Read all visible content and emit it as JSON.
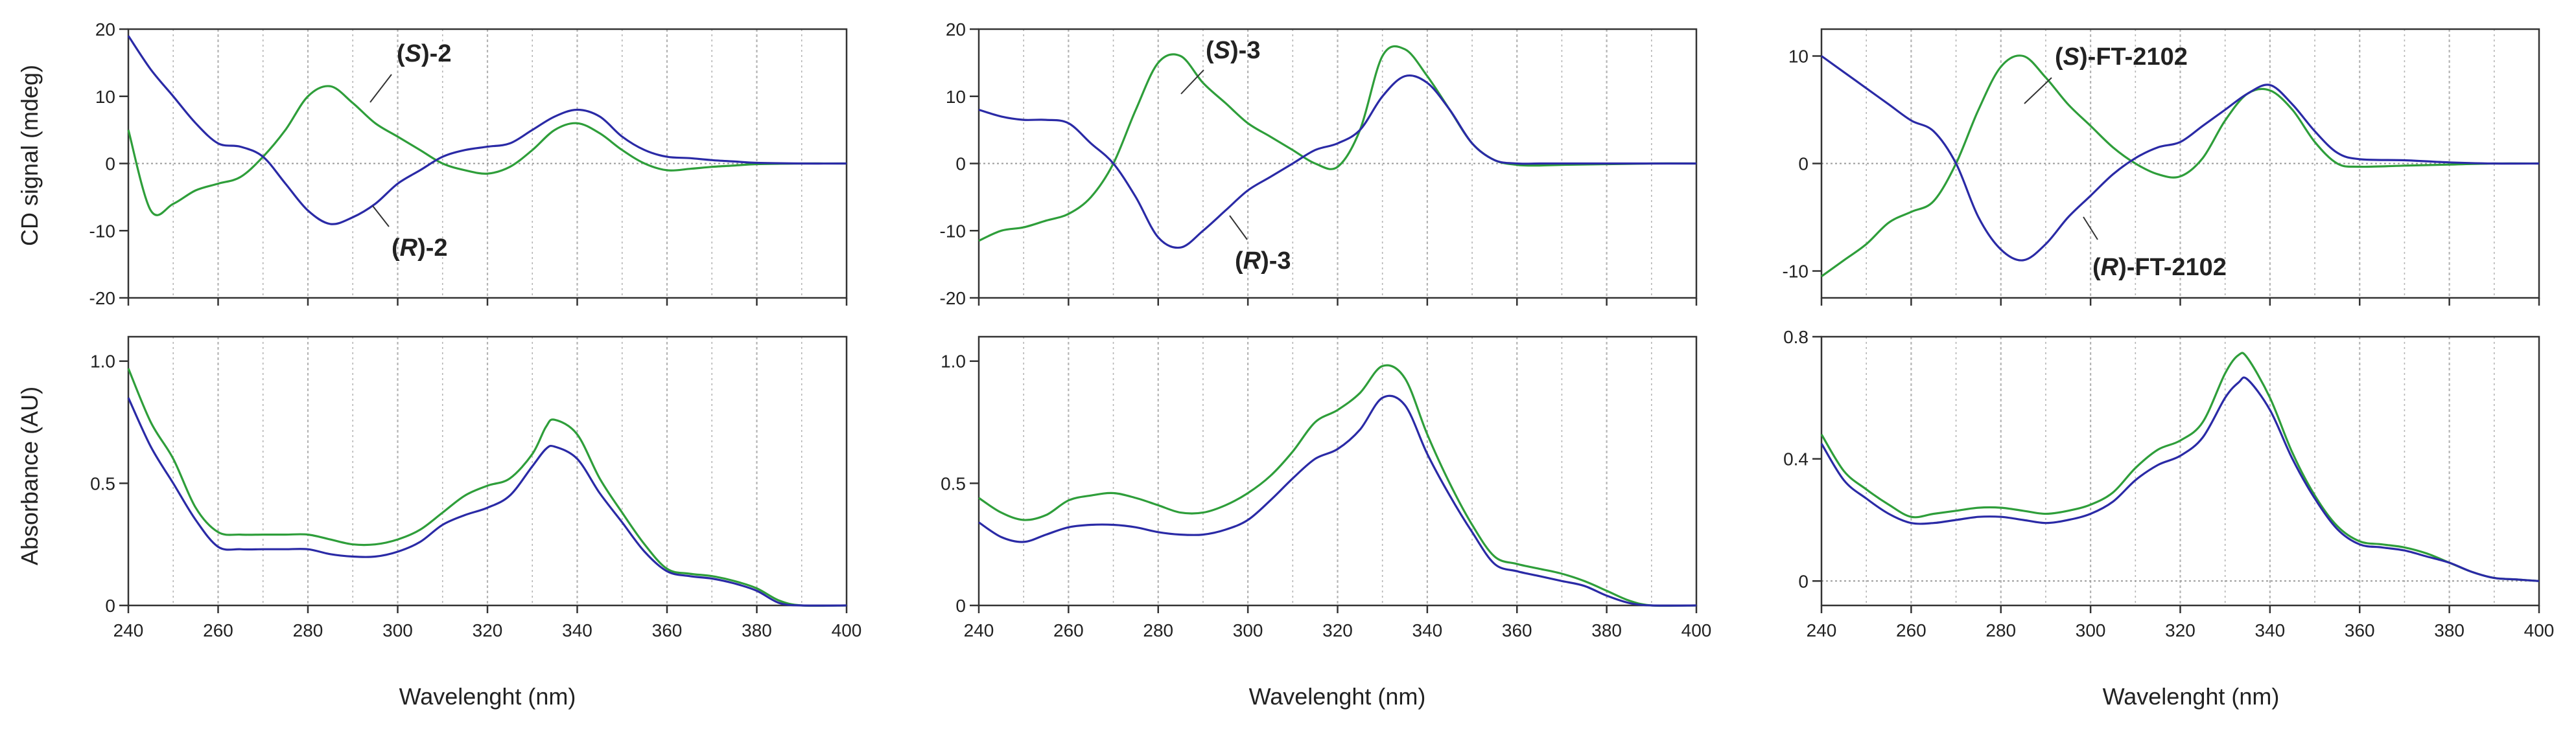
{
  "figure": {
    "colors": {
      "S": "#2e9e3a",
      "R": "#2a2aa6",
      "axis": "#333333",
      "grid": "#b5b5b5",
      "zero": "#9a9a9a"
    },
    "y_label_cd": "CD signal (mdeg)",
    "y_label_abs": "Absorbance (AU)",
    "x_label": "Wavelenght (nm)"
  },
  "chart_data": [
    {
      "type": "line",
      "panel": "cd",
      "compound": "2",
      "title": "",
      "xlabel": "",
      "ylabel": "CD signal (mdeg)",
      "xlim": [
        240,
        400
      ],
      "ylim": [
        -20,
        20
      ],
      "xticks": [
        240,
        260,
        280,
        300,
        320,
        340,
        360,
        380,
        400
      ],
      "yticks": [
        -20,
        -10,
        0,
        10,
        20
      ],
      "ytick_labels": [
        "-20",
        "-10",
        "0",
        "10",
        "20"
      ],
      "x": [
        240,
        245,
        250,
        255,
        260,
        265,
        270,
        275,
        280,
        285,
        290,
        295,
        300,
        305,
        310,
        315,
        320,
        325,
        330,
        335,
        340,
        345,
        350,
        355,
        360,
        365,
        370,
        375,
        380,
        390,
        400
      ],
      "series": [
        {
          "name": "(S)-2",
          "color": "#2e9e3a",
          "values": [
            5,
            -7,
            -6,
            -4,
            -3,
            -2,
            1,
            5,
            10,
            11.5,
            9,
            6,
            4,
            2,
            0,
            -1,
            -1.5,
            -0.5,
            2,
            5,
            6,
            4.5,
            2,
            0,
            -1,
            -0.8,
            -0.5,
            -0.3,
            -0.1,
            0,
            0
          ]
        },
        {
          "name": "(R)-2",
          "color": "#2a2aa6",
          "values": [
            19,
            14,
            10,
            6,
            3,
            2.5,
            1,
            -3,
            -7,
            -9,
            -8,
            -6,
            -3,
            -1,
            1,
            2,
            2.5,
            3,
            5,
            7,
            8,
            7,
            4,
            2,
            1,
            0.8,
            0.5,
            0.3,
            0.1,
            0,
            0
          ]
        }
      ],
      "annotations": [
        {
          "text_parts": [
            "(",
            "S",
            ")-2"
          ],
          "series": "(S)-2"
        },
        {
          "text_parts": [
            "(",
            "R",
            ")-2"
          ],
          "series": "(R)-2"
        }
      ]
    },
    {
      "type": "line",
      "panel": "abs",
      "compound": "2",
      "title": "",
      "xlabel": "Wavelenght (nm)",
      "ylabel": "Absorbance (AU)",
      "xlim": [
        240,
        400
      ],
      "ylim": [
        0,
        1.1
      ],
      "xticks": [
        240,
        260,
        280,
        300,
        320,
        340,
        360,
        380,
        400
      ],
      "yticks": [
        0,
        0.5,
        1.0
      ],
      "ytick_labels": [
        "0",
        "0.5",
        "1.0"
      ],
      "xtick_labels": [
        "240",
        "260",
        "280",
        "300",
        "320",
        "340",
        "360",
        "380",
        "400"
      ],
      "x": [
        240,
        245,
        250,
        255,
        260,
        265,
        270,
        275,
        280,
        285,
        290,
        295,
        300,
        305,
        310,
        315,
        320,
        325,
        330,
        333,
        335,
        340,
        345,
        350,
        355,
        360,
        365,
        370,
        375,
        380,
        385,
        390,
        400
      ],
      "series": [
        {
          "name": "(S)-2",
          "color": "#2e9e3a",
          "values": [
            0.97,
            0.75,
            0.6,
            0.4,
            0.3,
            0.29,
            0.29,
            0.29,
            0.29,
            0.27,
            0.25,
            0.25,
            0.27,
            0.31,
            0.38,
            0.45,
            0.49,
            0.52,
            0.62,
            0.73,
            0.76,
            0.7,
            0.52,
            0.38,
            0.25,
            0.15,
            0.13,
            0.12,
            0.1,
            0.07,
            0.02,
            0,
            0
          ]
        },
        {
          "name": "(R)-2",
          "color": "#2a2aa6",
          "values": [
            0.85,
            0.65,
            0.5,
            0.35,
            0.24,
            0.23,
            0.23,
            0.23,
            0.23,
            0.21,
            0.2,
            0.2,
            0.22,
            0.26,
            0.33,
            0.37,
            0.4,
            0.45,
            0.57,
            0.64,
            0.65,
            0.6,
            0.46,
            0.34,
            0.22,
            0.14,
            0.12,
            0.11,
            0.09,
            0.06,
            0.01,
            0,
            0
          ]
        }
      ]
    },
    {
      "type": "line",
      "panel": "cd",
      "compound": "3",
      "title": "",
      "xlabel": "",
      "ylabel": "",
      "xlim": [
        240,
        400
      ],
      "ylim": [
        -20,
        20
      ],
      "xticks": [
        240,
        260,
        280,
        300,
        320,
        340,
        360,
        380,
        400
      ],
      "yticks": [
        -20,
        -10,
        0,
        10,
        20
      ],
      "ytick_labels": [
        "-20",
        "-10",
        "0",
        "10",
        "20"
      ],
      "x": [
        240,
        245,
        250,
        255,
        260,
        265,
        270,
        275,
        280,
        285,
        290,
        295,
        300,
        305,
        310,
        315,
        320,
        325,
        330,
        335,
        340,
        345,
        350,
        355,
        360,
        365,
        370,
        380,
        390,
        400
      ],
      "series": [
        {
          "name": "(S)-3",
          "color": "#2e9e3a",
          "values": [
            -11.5,
            -10,
            -9.5,
            -8.5,
            -7.5,
            -5,
            0,
            8,
            15,
            16,
            12,
            9,
            6,
            4,
            2,
            0,
            -0.5,
            5,
            16,
            17,
            13,
            8,
            3,
            0.5,
            -0.2,
            -0.3,
            -0.2,
            -0.1,
            0,
            0
          ]
        },
        {
          "name": "(R)-3",
          "color": "#2a2aa6",
          "values": [
            8,
            7,
            6.5,
            6.5,
            6,
            3,
            0,
            -5,
            -11,
            -12.5,
            -10,
            -7,
            -4,
            -2,
            0,
            2,
            3,
            5,
            10,
            13,
            12,
            8,
            3,
            0.5,
            0,
            0,
            0,
            0,
            0,
            0
          ]
        }
      ],
      "annotations": [
        {
          "text_parts": [
            "(",
            "S",
            ")-3"
          ],
          "series": "(S)-3"
        },
        {
          "text_parts": [
            "(",
            "R",
            ")-3"
          ],
          "series": "(R)-3"
        }
      ]
    },
    {
      "type": "line",
      "panel": "abs",
      "compound": "3",
      "title": "",
      "xlabel": "Wavelenght (nm)",
      "ylabel": "",
      "xlim": [
        240,
        400
      ],
      "ylim": [
        0,
        1.1
      ],
      "xticks": [
        240,
        260,
        280,
        300,
        320,
        340,
        360,
        380,
        400
      ],
      "yticks": [
        0,
        0.5,
        1.0
      ],
      "ytick_labels": [
        "0",
        "0.5",
        "1.0"
      ],
      "xtick_labels": [
        "240",
        "260",
        "280",
        "300",
        "320",
        "340",
        "360",
        "380",
        "400"
      ],
      "x": [
        240,
        245,
        250,
        255,
        260,
        265,
        270,
        275,
        280,
        285,
        290,
        295,
        300,
        305,
        310,
        315,
        320,
        325,
        330,
        335,
        340,
        345,
        350,
        355,
        360,
        365,
        370,
        375,
        380,
        385,
        390,
        400
      ],
      "series": [
        {
          "name": "(S)-3",
          "color": "#2e9e3a",
          "values": [
            0.44,
            0.38,
            0.35,
            0.37,
            0.43,
            0.45,
            0.46,
            0.44,
            0.41,
            0.38,
            0.38,
            0.41,
            0.46,
            0.53,
            0.63,
            0.75,
            0.8,
            0.87,
            0.98,
            0.93,
            0.7,
            0.5,
            0.33,
            0.2,
            0.17,
            0.15,
            0.13,
            0.1,
            0.06,
            0.02,
            0,
            0
          ]
        },
        {
          "name": "(R)-3",
          "color": "#2a2aa6",
          "values": [
            0.34,
            0.28,
            0.26,
            0.29,
            0.32,
            0.33,
            0.33,
            0.32,
            0.3,
            0.29,
            0.29,
            0.31,
            0.35,
            0.43,
            0.52,
            0.6,
            0.64,
            0.72,
            0.85,
            0.82,
            0.62,
            0.45,
            0.3,
            0.17,
            0.14,
            0.12,
            0.1,
            0.08,
            0.04,
            0.01,
            0,
            0
          ]
        }
      ]
    },
    {
      "type": "line",
      "panel": "cd",
      "compound": "FT-2102",
      "title": "",
      "xlabel": "",
      "ylabel": "",
      "xlim": [
        240,
        400
      ],
      "ylim": [
        -12.5,
        12.5
      ],
      "xticks": [
        240,
        260,
        280,
        300,
        320,
        340,
        360,
        380,
        400
      ],
      "yticks": [
        -10,
        0,
        10
      ],
      "ytick_labels": [
        "-10",
        "0",
        "10"
      ],
      "x": [
        240,
        245,
        250,
        255,
        260,
        265,
        270,
        275,
        280,
        285,
        290,
        295,
        300,
        305,
        310,
        315,
        320,
        325,
        330,
        335,
        340,
        345,
        350,
        355,
        360,
        370,
        380,
        390,
        400
      ],
      "series": [
        {
          "name": "(S)-FT-2102",
          "color": "#2e9e3a",
          "values": [
            -10.5,
            -9,
            -7.5,
            -5.5,
            -4.5,
            -3.5,
            0,
            5,
            9,
            10,
            8,
            5.5,
            3.5,
            1.5,
            0,
            -1,
            -1.2,
            0.5,
            4,
            6.5,
            6.8,
            5,
            2,
            0,
            -0.3,
            -0.2,
            -0.1,
            0,
            0
          ]
        },
        {
          "name": "(R)-FT-2102",
          "color": "#2a2aa6",
          "values": [
            10,
            8.5,
            7,
            5.5,
            4,
            3,
            0,
            -5,
            -8,
            -9,
            -7.5,
            -5,
            -3,
            -1,
            0.5,
            1.5,
            2,
            3.5,
            5,
            6.5,
            7.3,
            5.5,
            3,
            1,
            0.4,
            0.3,
            0.1,
            0,
            0
          ]
        }
      ],
      "annotations": [
        {
          "text_parts": [
            "(",
            "S",
            ")-FT-2102"
          ],
          "series": "(S)-FT-2102"
        },
        {
          "text_parts": [
            "(",
            "R",
            ")-FT-2102"
          ],
          "series": "(R)-FT-2102"
        }
      ]
    },
    {
      "type": "line",
      "panel": "abs",
      "compound": "FT-2102",
      "title": "",
      "xlabel": "Wavelenght (nm)",
      "ylabel": "",
      "xlim": [
        240,
        400
      ],
      "ylim": [
        -0.08,
        0.8
      ],
      "xticks": [
        240,
        260,
        280,
        300,
        320,
        340,
        360,
        380,
        400
      ],
      "yticks": [
        0,
        0.4,
        0.8
      ],
      "ytick_labels": [
        "0",
        "0.4",
        "0.8"
      ],
      "xtick_labels": [
        "240",
        "260",
        "280",
        "300",
        "320",
        "340",
        "360",
        "380",
        "400"
      ],
      "x": [
        240,
        245,
        250,
        255,
        260,
        265,
        270,
        275,
        280,
        285,
        290,
        295,
        300,
        305,
        310,
        315,
        320,
        325,
        330,
        333,
        335,
        340,
        345,
        350,
        355,
        360,
        365,
        370,
        375,
        380,
        385,
        390,
        395,
        400
      ],
      "series": [
        {
          "name": "(S)-FT-2102",
          "color": "#2e9e3a",
          "values": [
            0.48,
            0.36,
            0.3,
            0.25,
            0.21,
            0.22,
            0.23,
            0.24,
            0.24,
            0.23,
            0.22,
            0.23,
            0.25,
            0.29,
            0.37,
            0.43,
            0.46,
            0.52,
            0.68,
            0.74,
            0.73,
            0.6,
            0.42,
            0.28,
            0.18,
            0.13,
            0.12,
            0.11,
            0.09,
            0.06,
            0.03,
            0.01,
            0.005,
            0
          ]
        },
        {
          "name": "(R)-FT-2102",
          "color": "#2a2aa6",
          "values": [
            0.45,
            0.33,
            0.27,
            0.22,
            0.19,
            0.19,
            0.2,
            0.21,
            0.21,
            0.2,
            0.19,
            0.2,
            0.22,
            0.26,
            0.33,
            0.38,
            0.41,
            0.47,
            0.6,
            0.65,
            0.66,
            0.56,
            0.4,
            0.27,
            0.17,
            0.12,
            0.11,
            0.1,
            0.08,
            0.06,
            0.03,
            0.01,
            0.005,
            0
          ]
        }
      ]
    }
  ]
}
